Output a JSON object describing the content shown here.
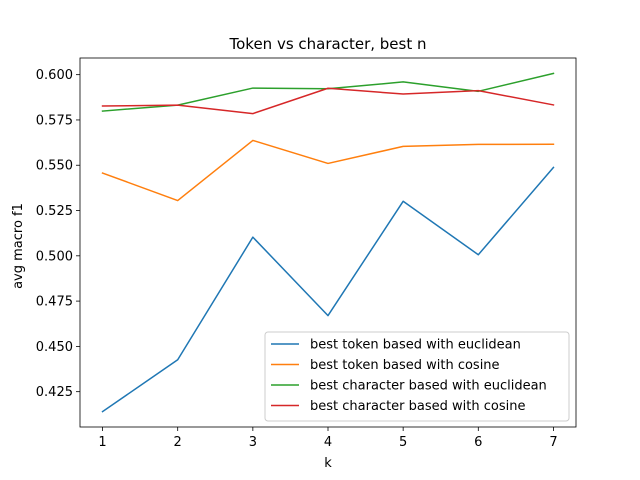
{
  "chart_data": {
    "type": "line",
    "title": "Token vs character, best n",
    "xlabel": "k",
    "ylabel": "avg macro f1",
    "x": [
      1,
      2,
      3,
      4,
      5,
      6,
      7
    ],
    "xlim": [
      0.7,
      7.3
    ],
    "ylim": [
      0.4055,
      0.6092
    ],
    "xticks": [
      1,
      2,
      3,
      4,
      5,
      6,
      7
    ],
    "yticks": [
      0.425,
      0.45,
      0.475,
      0.5,
      0.525,
      0.55,
      0.575,
      0.6
    ],
    "ytick_labels": [
      "0.425",
      "0.450",
      "0.475",
      "0.500",
      "0.525",
      "0.550",
      "0.575",
      "0.600"
    ],
    "grid": false,
    "legend_position": "lower-right",
    "series": [
      {
        "name": "best token based with euclidean",
        "color": "#1f77b4",
        "values": [
          0.414,
          0.4426,
          0.5103,
          0.467,
          0.5301,
          0.5006,
          0.5488
        ]
      },
      {
        "name": "best token based with cosine",
        "color": "#ff7f0e",
        "values": [
          0.5457,
          0.5305,
          0.5637,
          0.551,
          0.5604,
          0.5615,
          0.5616
        ]
      },
      {
        "name": "best character based with euclidean",
        "color": "#2ca02c",
        "values": [
          0.5799,
          0.5832,
          0.5926,
          0.5922,
          0.596,
          0.5908,
          0.6007
        ]
      },
      {
        "name": "best character based with cosine",
        "color": "#d62728",
        "values": [
          0.5827,
          0.5832,
          0.5785,
          0.5925,
          0.5893,
          0.5912,
          0.5833
        ]
      }
    ]
  }
}
